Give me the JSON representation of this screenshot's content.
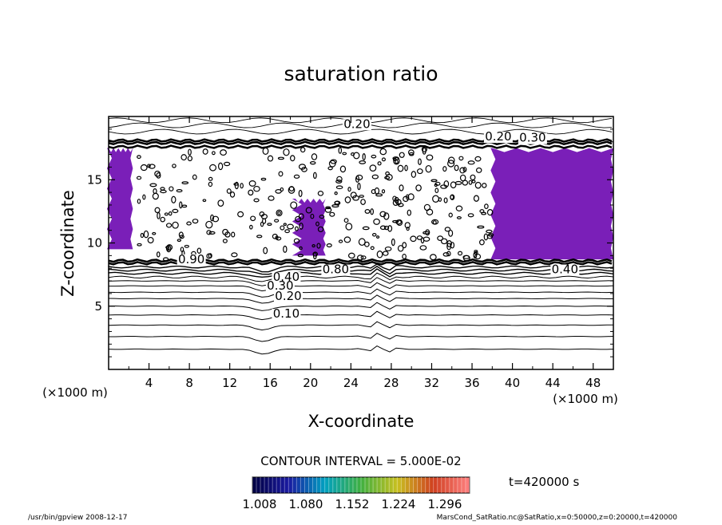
{
  "chart_data": {
    "type": "contour",
    "title": "saturation ratio",
    "xlabel": "X-coordinate",
    "ylabel": "Z-coordinate",
    "x_unit": "(×1000 m)",
    "y_unit": "(×1000 m)",
    "xlim": [
      0,
      50
    ],
    "ylim": [
      0,
      20
    ],
    "x_ticks": [
      4,
      8,
      12,
      16,
      20,
      24,
      28,
      32,
      36,
      40,
      44,
      48
    ],
    "y_ticks": [
      5,
      10,
      15
    ],
    "contour_interval_text": "CONTOUR INTERVAL = 5.000E-02",
    "time_text": "t=420000 s",
    "colorbar": {
      "tick_labels": [
        "1.008",
        "1.080",
        "1.152",
        "1.224",
        "1.296"
      ],
      "colors": [
        "#000040",
        "#1a1aa0",
        "#00a0c0",
        "#40b040",
        "#c8c020",
        "#d04020",
        "#ff8080"
      ]
    },
    "contour_labels": [
      {
        "text": "0.20",
        "x": 24.6,
        "y": 19.1
      },
      {
        "text": "0.20",
        "x": 38.6,
        "y": 18.1
      },
      {
        "text": "0.30",
        "x": 42.0,
        "y": 18.0
      },
      {
        "text": "0.90",
        "x": 8.2,
        "y": 8.4
      },
      {
        "text": "0.80",
        "x": 22.5,
        "y": 7.6
      },
      {
        "text": "0.40",
        "x": 17.6,
        "y": 7.0
      },
      {
        "text": "0.30",
        "x": 17.0,
        "y": 6.3
      },
      {
        "text": "0.20",
        "x": 17.8,
        "y": 5.5
      },
      {
        "text": "0.10",
        "x": 17.6,
        "y": 4.1
      },
      {
        "text": "0.40",
        "x": 45.2,
        "y": 7.6
      }
    ],
    "contour_levels_z": [
      1.6,
      2.6,
      3.5,
      4.3,
      5.0,
      5.6,
      6.1,
      6.6,
      7.0,
      7.3,
      7.6,
      7.85,
      8.1
    ],
    "supersaturated_regions": [
      {
        "name": "left",
        "x_range": [
          0,
          2.4
        ],
        "z_range": [
          9.5,
          17.5
        ]
      },
      {
        "name": "center",
        "x_range": [
          18.5,
          21.5
        ],
        "z_range": [
          9.0,
          13.5
        ]
      },
      {
        "name": "right",
        "x_range": [
          38,
          50
        ],
        "z_range": [
          8.7,
          17.5
        ]
      }
    ]
  },
  "footer": {
    "left": "/usr/bin/gpview   2008-12-17",
    "right": "MarsCond_SatRatio.nc@SatRatio,x=0:50000,z=0:20000,t=420000"
  }
}
